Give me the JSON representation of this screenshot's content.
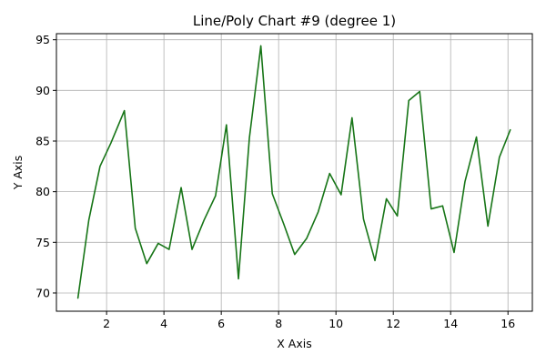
{
  "chart_data": {
    "type": "line",
    "title": "Line/Poly Chart #9 (degree 1)",
    "xlabel": "X Axis",
    "ylabel": "Y Axis",
    "xlim": [
      0.25,
      16.85
    ],
    "ylim": [
      68.2,
      95.6
    ],
    "xticks": [
      2,
      4,
      6,
      8,
      10,
      12,
      14,
      16
    ],
    "yticks": [
      70,
      75,
      80,
      85,
      90,
      95
    ],
    "grid": true,
    "line_color": "#177517",
    "series": [
      {
        "x": [
          1.0,
          1.38,
          1.77,
          2.15,
          2.62,
          3.0,
          3.4,
          3.8,
          4.18,
          4.6,
          4.98,
          5.4,
          5.8,
          6.18,
          6.6,
          6.98,
          7.38,
          7.78,
          8.18,
          8.56,
          8.98,
          9.38,
          9.78,
          10.18,
          10.56,
          10.96,
          11.36,
          11.76,
          12.14,
          12.54,
          12.92,
          13.32,
          13.72,
          14.12,
          14.5,
          14.9,
          15.3,
          15.7,
          16.08
        ],
        "values": [
          69.5,
          77.2,
          82.5,
          84.8,
          88.0,
          76.4,
          72.9,
          74.9,
          74.3,
          80.4,
          74.3,
          77.2,
          79.6,
          86.6,
          71.4,
          85.3,
          94.4,
          79.8,
          76.8,
          73.8,
          75.4,
          78.0,
          81.8,
          79.7,
          87.3,
          77.3,
          73.2,
          79.3,
          77.6,
          89.0,
          89.9,
          78.3,
          78.6,
          74.0,
          81.0,
          85.4,
          76.6,
          83.4,
          86.1
        ]
      }
    ]
  }
}
